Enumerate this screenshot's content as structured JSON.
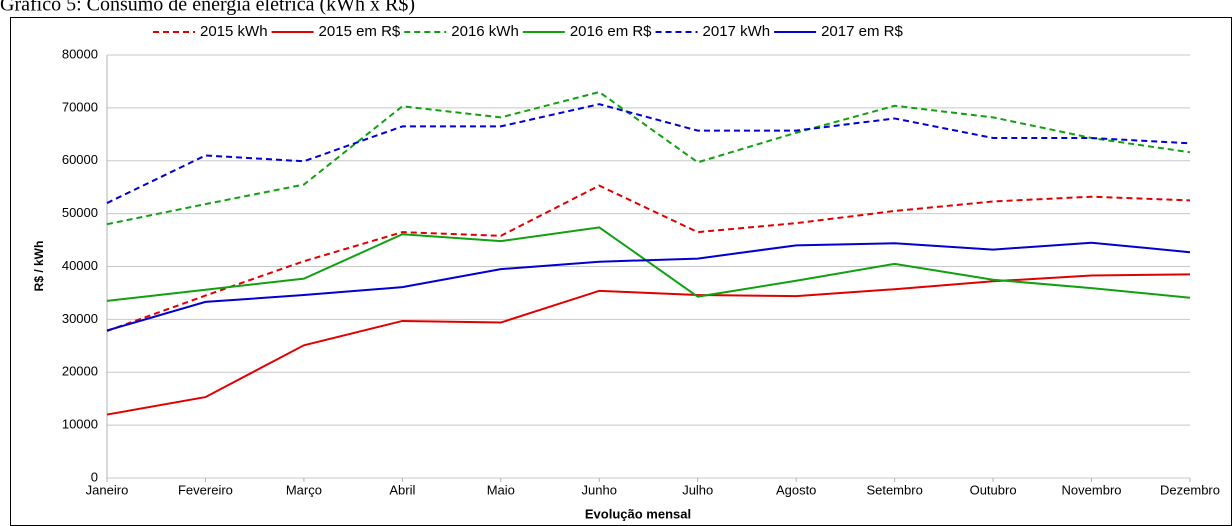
{
  "chart_data": {
    "type": "line",
    "title": "Gráfico 5: Consumo de energia elétrica (kWh x R$)",
    "x_label": "Evolução mensal",
    "y_label": "R$ / kWh",
    "categories": [
      "Janeiro",
      "Fevereiro",
      "Março",
      "Abril",
      "Maio",
      "Junho",
      "Julho",
      "Agosto",
      "Setembro",
      "Outubro",
      "Novembro",
      "Dezembro"
    ],
    "series": [
      {
        "name": "2015 kWh",
        "color": "#e00000",
        "line_style": "dashed",
        "values": [
          27800,
          34500,
          41000,
          46500,
          45800,
          55300,
          46500,
          48200,
          50500,
          52300,
          53200,
          52500
        ]
      },
      {
        "name": "2015 em R$",
        "color": "#e00000",
        "line_style": "solid",
        "values": [
          12000,
          15300,
          25100,
          29700,
          29400,
          35400,
          34600,
          34400,
          35700,
          37200,
          38300,
          38500
        ]
      },
      {
        "name": "2016 kWh",
        "color": "#10a010",
        "line_style": "dashed",
        "values": [
          48000,
          51800,
          55500,
          70300,
          68200,
          73000,
          59700,
          65300,
          70400,
          68200,
          64300,
          61600
        ]
      },
      {
        "name": "2016 em R$",
        "color": "#10a010",
        "line_style": "solid",
        "values": [
          33500,
          35600,
          37700,
          46100,
          44800,
          47400,
          34300,
          37300,
          40500,
          37500,
          35900,
          34100
        ]
      },
      {
        "name": "2017 kWh",
        "color": "#0000d0",
        "line_style": "dashed",
        "values": [
          52000,
          61000,
          59900,
          66500,
          66500,
          70700,
          65700,
          65700,
          68000,
          64300,
          64300,
          63300
        ]
      },
      {
        "name": "2017 em R$",
        "color": "#0000d0",
        "line_style": "solid",
        "values": [
          27900,
          33300,
          34600,
          36100,
          39500,
          40900,
          41500,
          44000,
          44400,
          43200,
          44500,
          42700
        ]
      }
    ],
    "ylim": [
      0,
      80000
    ],
    "yticks": [
      0,
      10000,
      20000,
      30000,
      40000,
      50000,
      60000,
      70000,
      80000
    ],
    "grid": true,
    "legend": "top"
  }
}
